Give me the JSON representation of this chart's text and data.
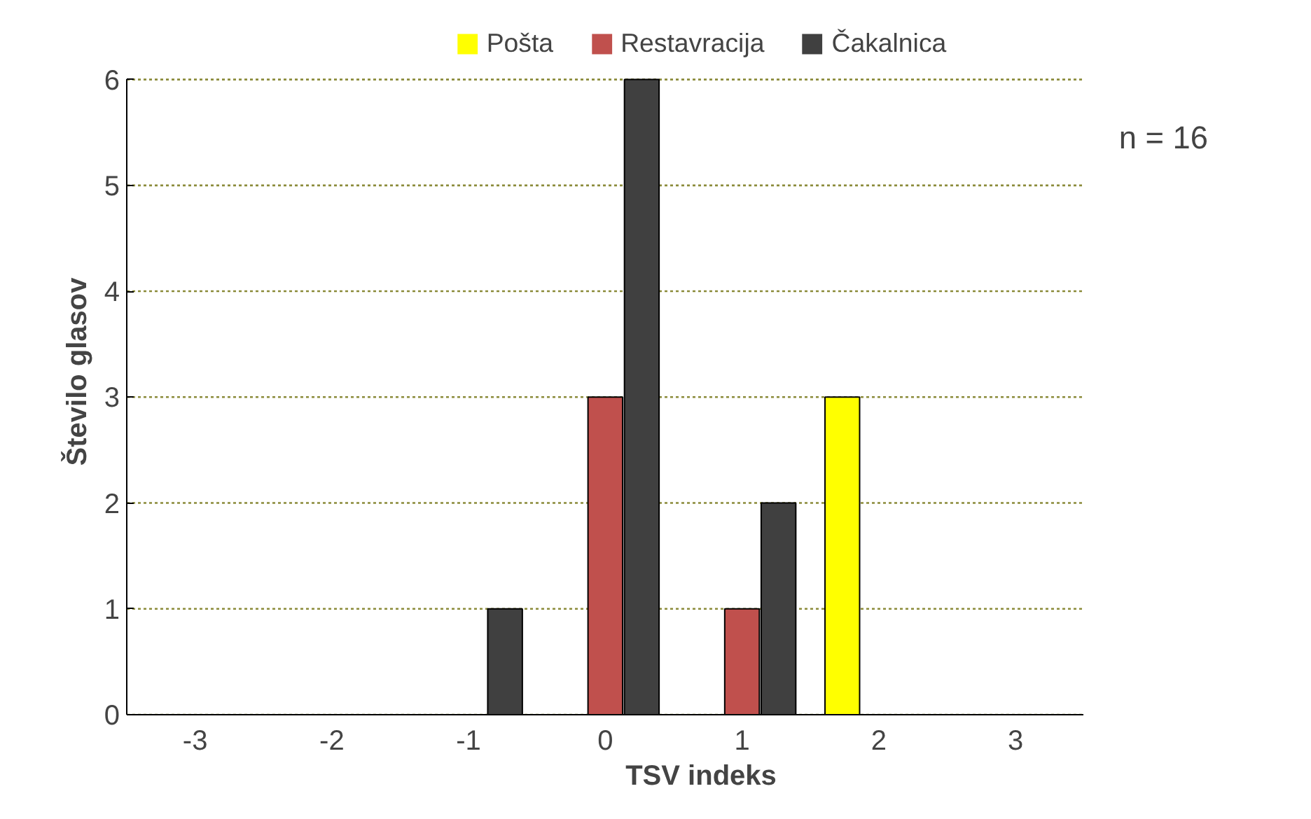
{
  "chart_data": {
    "type": "bar",
    "xlabel": "TSV indeks",
    "ylabel": "Število glasov",
    "categories": [
      "-3",
      "-2",
      "-1",
      "0",
      "1",
      "2",
      "3"
    ],
    "series": [
      {
        "name": "Pošta",
        "color": "#ffff00",
        "values": [
          0,
          0,
          0,
          0,
          0,
          3,
          0
        ]
      },
      {
        "name": "Restavracija",
        "color": "#c0504d",
        "values": [
          0,
          0,
          0,
          3,
          1,
          0,
          0
        ]
      },
      {
        "name": "Čakalnica",
        "color": "#404040",
        "values": [
          0,
          0,
          1,
          6,
          2,
          0,
          0
        ]
      }
    ],
    "ylim": [
      0,
      6
    ],
    "yticks": [
      0,
      1,
      2,
      3,
      4,
      5,
      6
    ],
    "grid": "y",
    "legend": "top",
    "annotations": [
      "n = 16"
    ]
  }
}
